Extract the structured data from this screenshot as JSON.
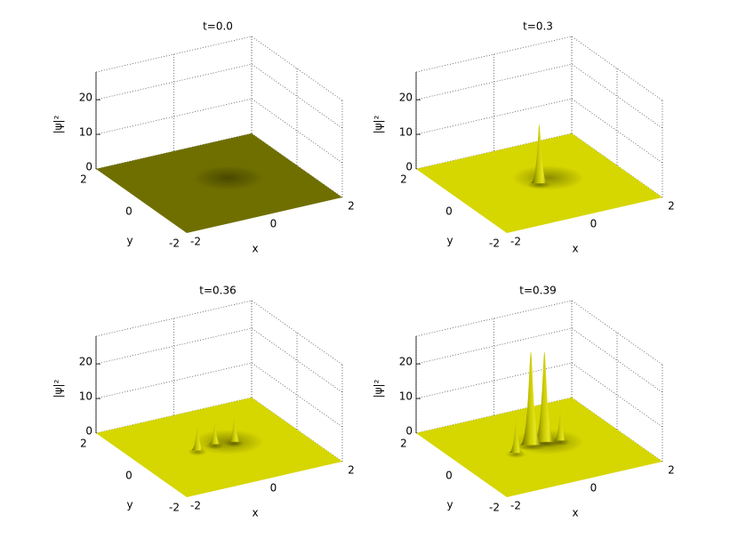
{
  "chart_data": [
    {
      "type": "surface",
      "title": "t=0.0",
      "xlabel": "x",
      "ylabel": "y",
      "zlabel": "|ψ|²",
      "color": "#6f6f00",
      "xlim": [
        -2,
        2
      ],
      "xticks": [
        -2,
        0,
        2
      ],
      "ylim": [
        -2,
        2
      ],
      "yticks": [
        -2,
        0,
        2
      ],
      "zlim": [
        0,
        28
      ],
      "zticks": [
        0,
        10,
        20
      ],
      "grid": true,
      "peaks": []
    },
    {
      "type": "surface",
      "title": "t=0.3",
      "xlabel": "x",
      "ylabel": "y",
      "zlabel": "|ψ|²",
      "color": "#d6d600",
      "xlim": [
        -2,
        2
      ],
      "xticks": [
        -2,
        0,
        2
      ],
      "ylim": [
        -2,
        2
      ],
      "yticks": [
        -2,
        0,
        2
      ],
      "zlim": [
        0,
        28
      ],
      "zticks": [
        0,
        10,
        20
      ],
      "grid": true,
      "peaks": [
        {
          "x": 0,
          "y": 0,
          "height": 17
        }
      ]
    },
    {
      "type": "surface",
      "title": "t=0.36",
      "xlabel": "x",
      "ylabel": "y",
      "zlabel": "|ψ|²",
      "color": "#d6d600",
      "xlim": [
        -2,
        2
      ],
      "xticks": [
        -2,
        0,
        2
      ],
      "ylim": [
        -2,
        2
      ],
      "yticks": [
        -2,
        0,
        2
      ],
      "zlim": [
        0,
        28
      ],
      "zticks": [
        0,
        10,
        20
      ],
      "grid": true,
      "peaks": [
        {
          "x": -0.5,
          "y": 0.1,
          "height": 7
        },
        {
          "x": 0,
          "y": 0.2,
          "height": 6
        },
        {
          "x": 0.45,
          "y": 0.1,
          "height": 7
        }
      ]
    },
    {
      "type": "surface",
      "title": "t=0.39",
      "xlabel": "x",
      "ylabel": "y",
      "zlabel": "|ψ|²",
      "color": "#d6d600",
      "xlim": [
        -2,
        2
      ],
      "xticks": [
        -2,
        0,
        2
      ],
      "ylim": [
        -2,
        2
      ],
      "yticks": [
        -2,
        0,
        2
      ],
      "zlim": [
        0,
        28
      ],
      "zticks": [
        0,
        10,
        20
      ],
      "grid": true,
      "peaks": [
        {
          "x": -0.6,
          "y": 0,
          "height": 9
        },
        {
          "x": -0.1,
          "y": 0.2,
          "height": 27
        },
        {
          "x": 0.25,
          "y": 0.2,
          "height": 26
        },
        {
          "x": 0.6,
          "y": 0.1,
          "height": 8
        }
      ]
    }
  ]
}
